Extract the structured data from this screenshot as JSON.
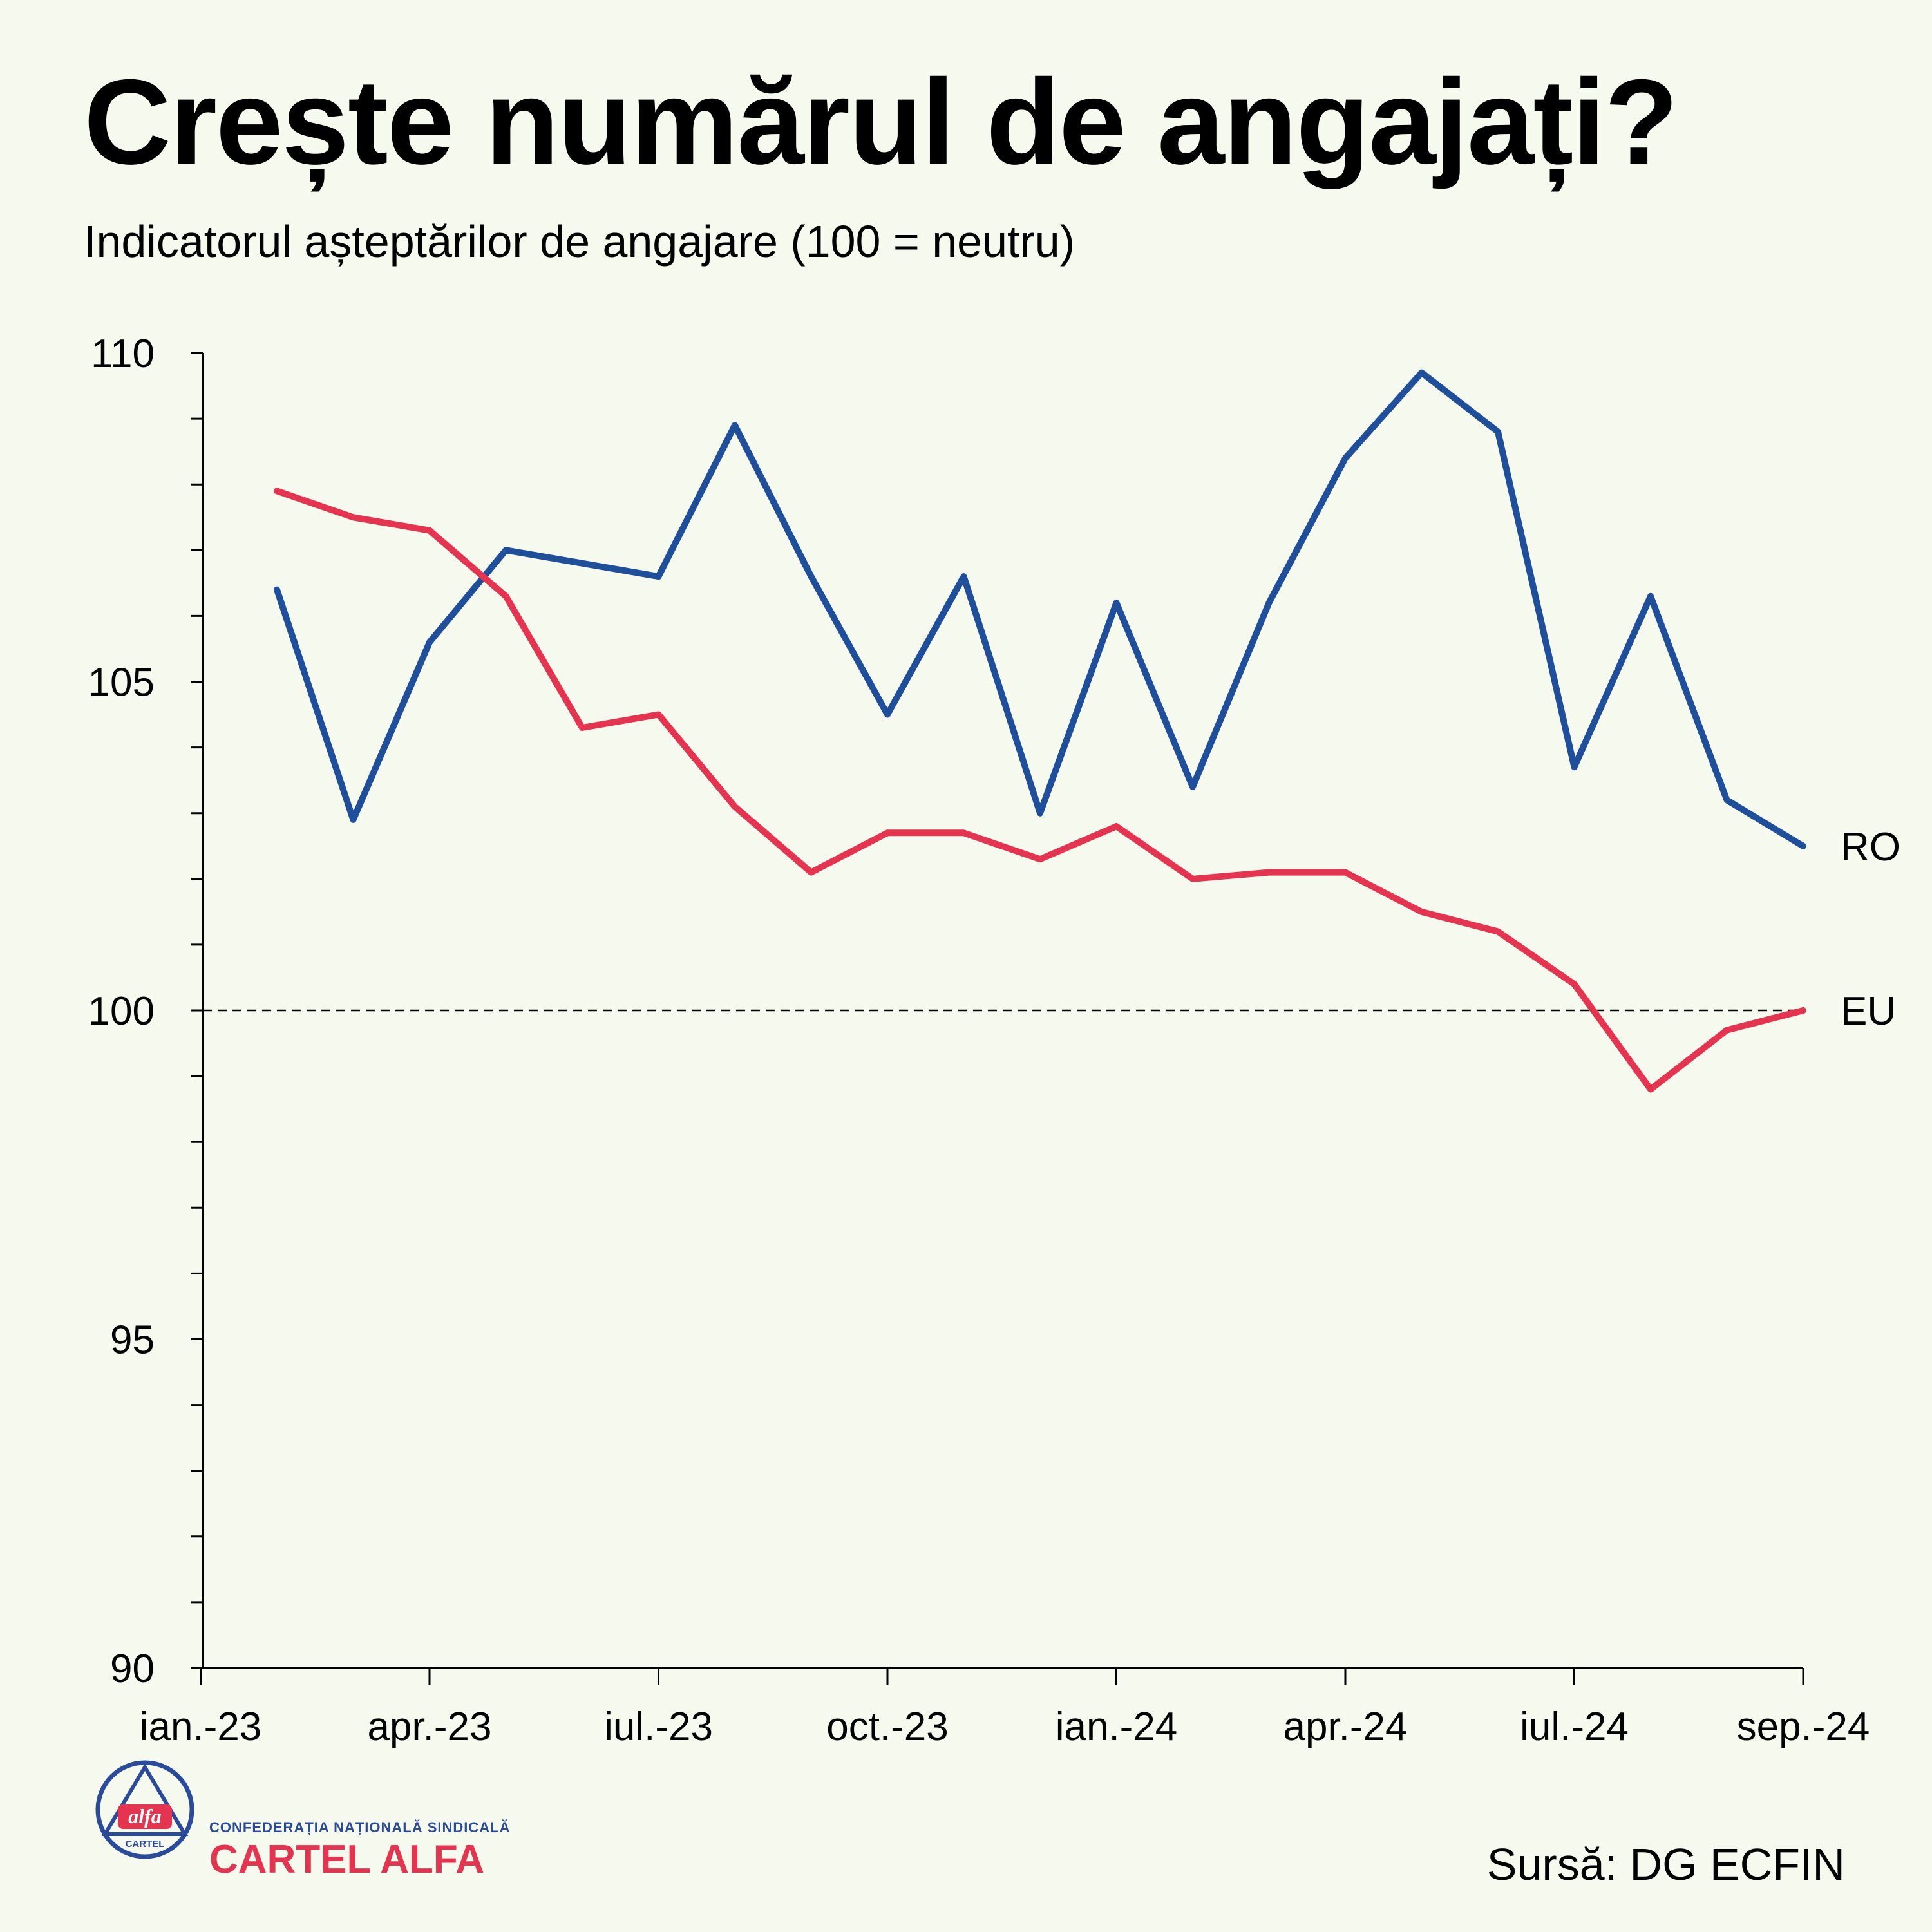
{
  "title": "Crește numărul de angajați?",
  "subtitle": "Indicatorul așteptărilor de angajare (100 = neutru)",
  "source": "Sursă: DG ECFIN",
  "logo": {
    "top_text": "CONFEDERAȚIA NAȚIONALĂ SINDICALĂ",
    "main_text": "CARTEL ALFA",
    "badge_word": "alfa",
    "badge_sub": "CARTEL"
  },
  "colors": {
    "ro": "#1f4e9a",
    "eu": "#e4344f",
    "background": "#f6f9ee",
    "logo_blue": "#2a4a9a"
  },
  "chart_data": {
    "type": "line",
    "title": "Crește numărul de angajați?",
    "subtitle": "Indicatorul așteptărilor de angajare (100 = neutru)",
    "x": [
      "2023-01",
      "2023-02",
      "2023-03",
      "2023-04",
      "2023-05",
      "2023-06",
      "2023-07",
      "2023-08",
      "2023-09",
      "2023-10",
      "2023-11",
      "2023-12",
      "2024-01",
      "2024-02",
      "2024-03",
      "2024-04",
      "2024-05",
      "2024-06",
      "2024-07",
      "2024-08",
      "2024-09"
    ],
    "x_tick_labels": [
      "ian.-23",
      "apr.-23",
      "iul.-23",
      "oct.-23",
      "ian.-24",
      "apr.-24",
      "iul.-24",
      "sep.-24"
    ],
    "y_ticks": [
      90,
      95,
      100,
      105,
      110
    ],
    "ylim": [
      90,
      110
    ],
    "reference_line": 100,
    "series": [
      {
        "name": "RO",
        "values": [
          106.4,
          102.9,
          105.6,
          107.0,
          106.8,
          106.6,
          108.9,
          106.6,
          104.5,
          106.6,
          103.0,
          106.2,
          103.4,
          106.2,
          108.4,
          109.7,
          108.8,
          103.7,
          106.3,
          103.2,
          102.5
        ]
      },
      {
        "name": "EU",
        "values": [
          107.9,
          107.5,
          107.3,
          106.3,
          104.3,
          104.5,
          103.1,
          102.1,
          102.7,
          102.7,
          102.3,
          102.8,
          102.0,
          102.1,
          102.1,
          101.5,
          101.2,
          100.4,
          98.8,
          99.7,
          100.0
        ]
      }
    ],
    "grid": false,
    "legend": "inline-right"
  }
}
